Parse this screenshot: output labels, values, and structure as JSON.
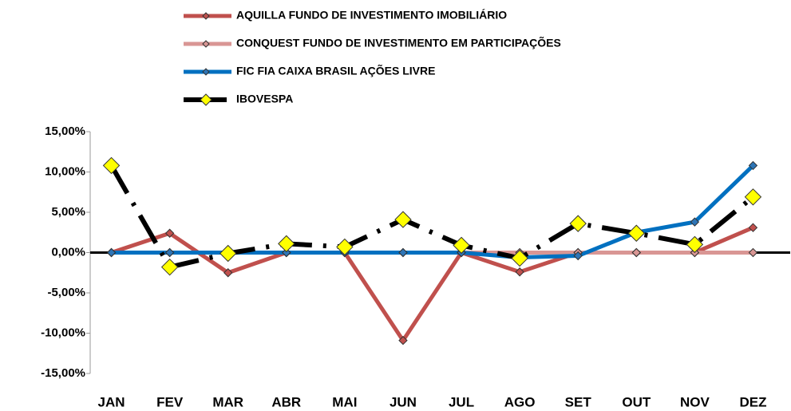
{
  "chart_data": {
    "type": "line",
    "categories": [
      "JAN",
      "FEV",
      "MAR",
      "ABR",
      "MAI",
      "JUN",
      "JUL",
      "AGO",
      "SET",
      "OUT",
      "NOV",
      "DEZ"
    ],
    "series": [
      {
        "name": "AQUILLA FUNDO DE INVESTIMENTO IMOBILIÁRIO",
        "color": "#c0504d",
        "marker_color": "#c0504d",
        "values": [
          0,
          2.4,
          -2.5,
          0,
          0,
          -10.9,
          0,
          -2.4,
          0,
          0,
          0,
          3.1
        ]
      },
      {
        "name": "CONQUEST FUNDO DE INVESTIMENTO EM PARTICIPAÇÕES",
        "color": "#d99694",
        "marker_color": "#d99694",
        "values": [
          0,
          0,
          0,
          0,
          0,
          0,
          0,
          0,
          0,
          0,
          0,
          0
        ]
      },
      {
        "name": "FIC FIA CAIXA BRASIL AÇÕES LIVRE",
        "color": "#0070c0",
        "marker_color": "#2e75b6",
        "values": [
          0,
          0,
          0,
          0,
          0,
          0,
          0,
          -0.6,
          -0.4,
          2.5,
          3.8,
          10.8
        ]
      },
      {
        "name": "IBOVESPA",
        "color": "#000000",
        "marker_color": "#ffff00",
        "dashed": true,
        "values": [
          10.8,
          -1.8,
          -0.1,
          1.1,
          0.7,
          4.1,
          0.9,
          -0.7,
          3.6,
          2.4,
          1.0,
          6.9
        ]
      }
    ],
    "ylim": [
      -15,
      15
    ],
    "yticks": [
      {
        "value": -15,
        "label": "-15,00%"
      },
      {
        "value": -10,
        "label": "-10,00%"
      },
      {
        "value": -5,
        "label": "-5,00%"
      },
      {
        "value": 0,
        "label": "0,00%"
      },
      {
        "value": 5,
        "label": "5,00%"
      },
      {
        "value": 10,
        "label": "10,00%"
      },
      {
        "value": 15,
        "label": "15,00%"
      }
    ],
    "legend": "top"
  }
}
